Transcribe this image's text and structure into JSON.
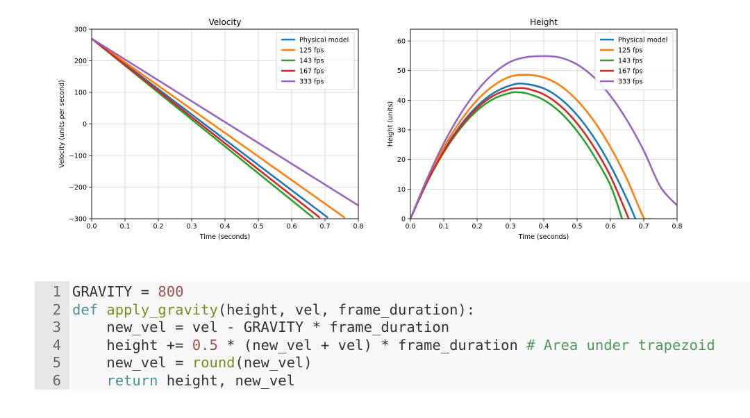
{
  "chart_data": [
    {
      "id": "velocity",
      "type": "line",
      "title": "Velocity",
      "xlabel": "Time (seconds)",
      "ylabel": "Velocity (units per second)",
      "xlim": [
        0,
        0.8
      ],
      "ylim": [
        -300,
        300
      ],
      "xticks": [
        0.0,
        0.1,
        0.2,
        0.3,
        0.4,
        0.5,
        0.6,
        0.7,
        0.8
      ],
      "xtick_labels": [
        "0.0",
        "0.1",
        "0.2",
        "0.3",
        "0.4",
        "0.5",
        "0.6",
        "0.7",
        "0.8"
      ],
      "yticks": [
        300,
        200,
        100,
        0,
        -100,
        -200,
        -300
      ],
      "ytick_labels": [
        "300",
        "200",
        "100",
        "0",
        "−100",
        "−200",
        "−300"
      ],
      "grid": true,
      "legend_position": "top-right",
      "series": [
        {
          "name": "Physical model",
          "color": "#1f77b4",
          "x": [
            0.0,
            0.709
          ],
          "y": [
            270,
            -297
          ]
        },
        {
          "name": "125 fps",
          "color": "#ff7f0e",
          "x": [
            0.0,
            0.76
          ],
          "y": [
            270,
            -297
          ]
        },
        {
          "name": "143 fps",
          "color": "#2ca02c",
          "x": [
            0.0,
            0.665
          ],
          "y": [
            270,
            -297
          ]
        },
        {
          "name": "167 fps",
          "color": "#d62728",
          "x": [
            0.0,
            0.685
          ],
          "y": [
            270,
            -297
          ]
        },
        {
          "name": "333 fps",
          "color": "#9467bd",
          "x": [
            0.0,
            0.8
          ],
          "y": [
            270,
            -258
          ]
        }
      ]
    },
    {
      "id": "height",
      "type": "line",
      "title": "Height",
      "xlabel": "Time (seconds)",
      "ylabel": "Height (units)",
      "xlim": [
        0,
        0.8
      ],
      "ylim": [
        0,
        64
      ],
      "xticks": [
        0.0,
        0.1,
        0.2,
        0.3,
        0.4,
        0.5,
        0.6,
        0.7,
        0.8
      ],
      "xtick_labels": [
        "0.0",
        "0.1",
        "0.2",
        "0.3",
        "0.4",
        "0.5",
        "0.6",
        "0.7",
        "0.8"
      ],
      "yticks": [
        60,
        50,
        40,
        30,
        20,
        10,
        0
      ],
      "ytick_labels": [
        "60",
        "50",
        "40",
        "30",
        "20",
        "10",
        "0"
      ],
      "grid": true,
      "legend_position": "top-right",
      "series": [
        {
          "name": "Physical model",
          "color": "#1f77b4",
          "x": [
            0.0,
            0.05,
            0.1,
            0.15,
            0.2,
            0.25,
            0.3,
            0.338,
            0.4,
            0.45,
            0.5,
            0.55,
            0.6,
            0.65,
            0.675
          ],
          "y": [
            0.0,
            12.5,
            23.0,
            31.5,
            38.0,
            42.5,
            45.0,
            45.6,
            44.0,
            40.5,
            35.0,
            27.5,
            18.0,
            6.5,
            0.0
          ]
        },
        {
          "name": "125 fps",
          "color": "#ff7f0e",
          "x": [
            0.0,
            0.05,
            0.1,
            0.15,
            0.2,
            0.25,
            0.3,
            0.35,
            0.4,
            0.45,
            0.5,
            0.55,
            0.6,
            0.65,
            0.7,
            0.72
          ],
          "y": [
            0.0,
            13.0,
            24.0,
            33.0,
            40.0,
            45.0,
            48.0,
            48.6,
            47.7,
            44.9,
            40.0,
            33.1,
            24.2,
            13.3,
            0.4,
            0.0
          ]
        },
        {
          "name": "143 fps",
          "color": "#2ca02c",
          "x": [
            0.0,
            0.05,
            0.1,
            0.15,
            0.2,
            0.25,
            0.3,
            0.318,
            0.35,
            0.4,
            0.45,
            0.5,
            0.55,
            0.6,
            0.635
          ],
          "y": [
            0.0,
            12.3,
            22.4,
            30.5,
            36.5,
            40.5,
            42.5,
            42.7,
            42.3,
            40.1,
            35.9,
            29.6,
            21.4,
            11.3,
            0.0
          ]
        },
        {
          "name": "167 fps",
          "color": "#d62728",
          "x": [
            0.0,
            0.05,
            0.1,
            0.15,
            0.2,
            0.25,
            0.3,
            0.328,
            0.35,
            0.4,
            0.45,
            0.5,
            0.55,
            0.6,
            0.655
          ],
          "y": [
            0.0,
            12.4,
            22.7,
            31.0,
            37.3,
            41.6,
            43.8,
            44.1,
            43.9,
            42.0,
            38.1,
            32.2,
            24.3,
            14.4,
            0.0
          ]
        },
        {
          "name": "333 fps",
          "color": "#9467bd",
          "x": [
            0.0,
            0.05,
            0.1,
            0.15,
            0.2,
            0.25,
            0.3,
            0.35,
            0.405,
            0.45,
            0.5,
            0.55,
            0.6,
            0.65,
            0.7,
            0.75,
            0.8
          ],
          "y": [
            0.0,
            13.5,
            25.4,
            35.3,
            43.2,
            49.1,
            53.0,
            54.6,
            54.9,
            54.4,
            52.1,
            47.8,
            41.5,
            33.2,
            23.0,
            10.8,
            4.5
          ]
        }
      ]
    }
  ],
  "code": {
    "lines": [
      {
        "number": "1",
        "tokens": [
          {
            "t": "plain",
            "v": "GRAVITY = "
          },
          {
            "t": "num",
            "v": "800"
          }
        ]
      },
      {
        "number": "2",
        "tokens": [
          {
            "t": "kw",
            "v": "def "
          },
          {
            "t": "fn",
            "v": "apply_gravity"
          },
          {
            "t": "plain",
            "v": "(height, vel, frame_duration):"
          }
        ]
      },
      {
        "number": "3",
        "tokens": [
          {
            "t": "plain",
            "v": "    new_vel = vel - GRAVITY * frame_duration"
          }
        ]
      },
      {
        "number": "4",
        "tokens": [
          {
            "t": "plain",
            "v": "    height += "
          },
          {
            "t": "num",
            "v": "0.5"
          },
          {
            "t": "plain",
            "v": " * (new_vel + vel) * frame_duration "
          },
          {
            "t": "comment",
            "v": "# Area under trapezoid"
          }
        ]
      },
      {
        "number": "5",
        "tokens": [
          {
            "t": "plain",
            "v": "    new_vel = "
          },
          {
            "t": "builtin",
            "v": "round"
          },
          {
            "t": "plain",
            "v": "(new_vel)"
          }
        ]
      },
      {
        "number": "6",
        "tokens": [
          {
            "t": "plain",
            "v": "    "
          },
          {
            "t": "kw",
            "v": "return"
          },
          {
            "t": "plain",
            "v": " height, new_vel"
          }
        ]
      }
    ]
  }
}
